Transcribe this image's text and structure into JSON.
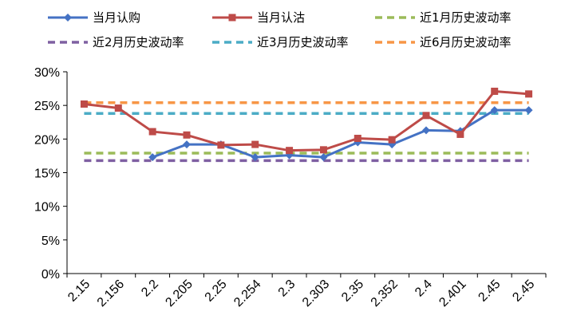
{
  "chart_data": {
    "type": "line",
    "title": "",
    "xlabel": "",
    "ylabel": "",
    "categories": [
      "2.15",
      "2.156",
      "2.2",
      "2.205",
      "2.25",
      "2.254",
      "2.3",
      "2.303",
      "2.35",
      "2.352",
      "2.4",
      "2.401",
      "2.45",
      "2.45"
    ],
    "ylim": [
      0,
      30
    ],
    "yticks": [
      "0%",
      "5%",
      "10%",
      "15%",
      "20%",
      "25%",
      "30%"
    ],
    "grid": false,
    "legend_position": "top",
    "series": [
      {
        "name": "当月认购",
        "color": "#4472C4",
        "style": "solid",
        "marker": "diamond",
        "values": [
          null,
          null,
          17.3,
          19.2,
          19.2,
          17.3,
          17.6,
          17.3,
          19.5,
          19.2,
          21.3,
          21.2,
          24.3,
          24.3
        ]
      },
      {
        "name": "当月认沽",
        "color": "#BE4B48",
        "style": "solid",
        "marker": "square",
        "values": [
          25.2,
          24.6,
          21.1,
          20.6,
          19.1,
          19.2,
          18.3,
          18.4,
          20.1,
          19.9,
          23.5,
          20.7,
          27.1,
          26.7
        ]
      },
      {
        "name": "近1月历史波动率",
        "color": "#9BBB59",
        "style": "dashed",
        "marker": "none",
        "values": [
          17.9,
          17.9,
          17.9,
          17.9,
          17.9,
          17.9,
          17.9,
          17.9,
          17.9,
          17.9,
          17.9,
          17.9,
          17.9,
          17.9
        ]
      },
      {
        "name": "近2月历史波动率",
        "color": "#7F60A2",
        "style": "dashed",
        "marker": "none",
        "values": [
          16.8,
          16.8,
          16.8,
          16.8,
          16.8,
          16.8,
          16.8,
          16.8,
          16.8,
          16.8,
          16.8,
          16.8,
          16.8,
          16.8
        ]
      },
      {
        "name": "近3月历史波动率",
        "color": "#4BACC6",
        "style": "dashed",
        "marker": "none",
        "values": [
          23.8,
          23.8,
          23.8,
          23.8,
          23.8,
          23.8,
          23.8,
          23.8,
          23.8,
          23.8,
          23.8,
          23.8,
          23.8,
          23.8
        ]
      },
      {
        "name": "近6月历史波动率",
        "color": "#F79646",
        "style": "dashed",
        "marker": "none",
        "values": [
          25.4,
          25.4,
          25.4,
          25.4,
          25.4,
          25.4,
          25.4,
          25.4,
          25.4,
          25.4,
          25.4,
          25.4,
          25.4,
          25.4
        ]
      }
    ]
  }
}
